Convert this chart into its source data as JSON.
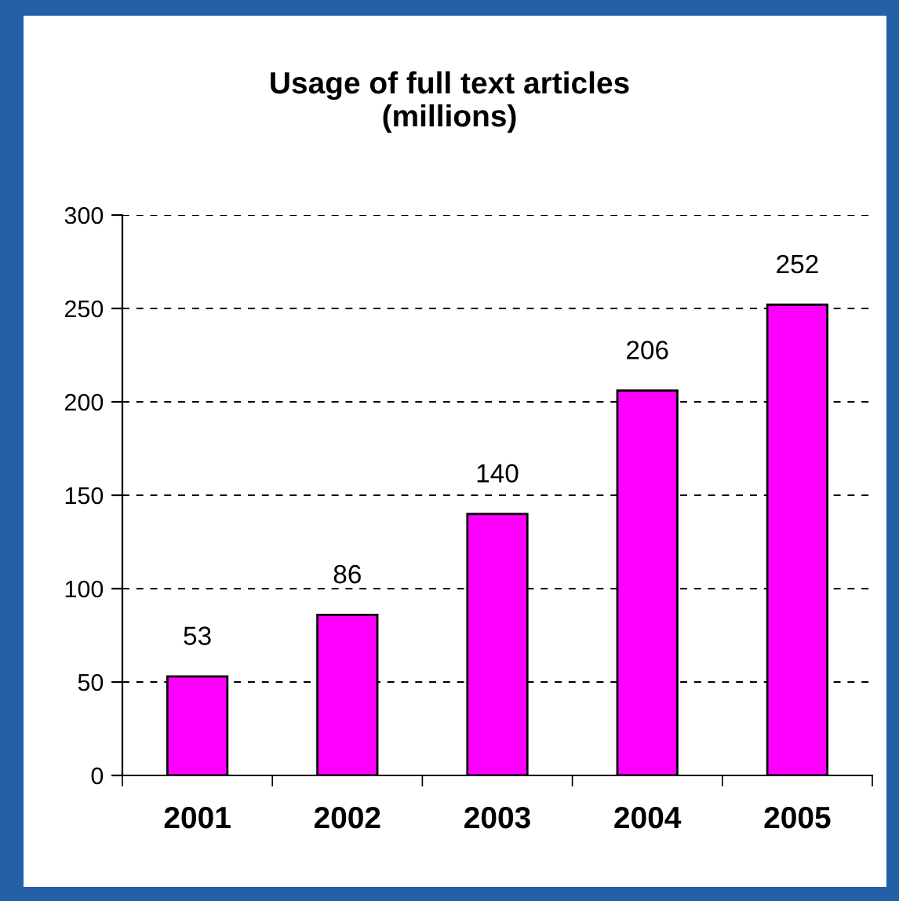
{
  "chart_data": {
    "type": "bar",
    "title": "Usage of full text articles\n(millions)",
    "categories": [
      "2001",
      "2002",
      "2003",
      "2004",
      "2005"
    ],
    "values": [
      53,
      86,
      140,
      206,
      252
    ],
    "color": "#ff00ff",
    "ylim": [
      0,
      300
    ],
    "yticks": [
      0,
      50,
      100,
      150,
      200,
      250,
      300
    ],
    "grid": "y",
    "data_labels": true
  }
}
